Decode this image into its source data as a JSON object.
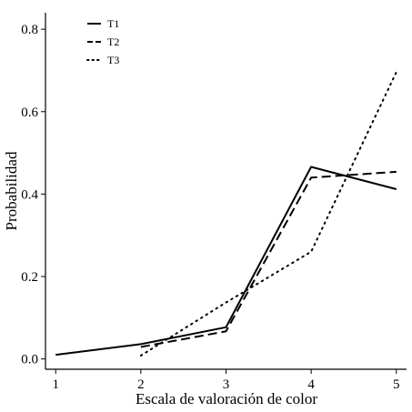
{
  "chart_data": {
    "type": "line",
    "xlabel": "Escala de valoración de color",
    "ylabel": "Probabilidad",
    "x": [
      1,
      2,
      3,
      4,
      5
    ],
    "xlim": [
      0.88,
      5.12
    ],
    "ylim": [
      -0.025,
      0.84
    ],
    "x_ticks": [
      "1",
      "2",
      "3",
      "4",
      "5"
    ],
    "y_ticks": [
      {
        "value": 0.0,
        "label": "0.0"
      },
      {
        "value": 0.2,
        "label": "0.2"
      },
      {
        "value": 0.4,
        "label": "0.4"
      },
      {
        "value": 0.6,
        "label": "0.6"
      },
      {
        "value": 0.8,
        "label": "0.8"
      }
    ],
    "grid": false,
    "legend_position": "top-left",
    "series": [
      {
        "name": "T1",
        "style": "solid",
        "color": "#000000",
        "points": [
          [
            1,
            0.01
          ],
          [
            2,
            0.036
          ],
          [
            3,
            0.077
          ],
          [
            4,
            0.466
          ],
          [
            5,
            0.412
          ]
        ]
      },
      {
        "name": "T2",
        "style": "dashed",
        "color": "#000000",
        "points": [
          [
            2,
            0.029
          ],
          [
            3,
            0.067
          ],
          [
            4,
            0.44
          ],
          [
            5,
            0.454
          ]
        ]
      },
      {
        "name": "T3",
        "style": "dotted",
        "color": "#000000",
        "points": [
          [
            2,
            0.008
          ],
          [
            3,
            0.137
          ],
          [
            4,
            0.26
          ],
          [
            5,
            0.696
          ]
        ]
      }
    ]
  }
}
